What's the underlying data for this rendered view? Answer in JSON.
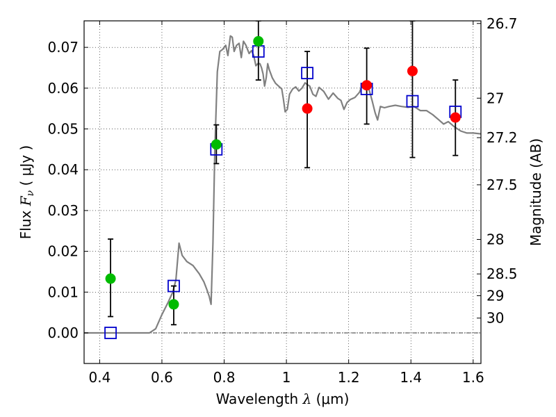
{
  "chart_data": {
    "type": "scatter",
    "xlabel": {
      "prefix": "Wavelength  ",
      "symbol": "λ",
      "unit": " (μm)"
    },
    "ylabel": {
      "prefix": "Flux  ",
      "symbol": "F",
      "subscript": "ν",
      "unit": "  ( μJy )"
    },
    "y2label": "Magnitude (AB)",
    "xlim": [
      0.35,
      1.625
    ],
    "ylim": [
      -0.0075,
      0.0765
    ],
    "xticks": [
      0.4,
      0.6,
      0.8,
      1.0,
      1.2,
      1.4,
      1.6
    ],
    "xtick_labels": [
      "0.4",
      "0.6",
      "0.8",
      "1",
      "1.2",
      "1.4",
      "1.6"
    ],
    "yticks": [
      0.0,
      0.01,
      0.02,
      0.03,
      0.04,
      0.05,
      0.06,
      0.07
    ],
    "ytick_labels": [
      "0.00",
      "0.01",
      "0.02",
      "0.03",
      "0.04",
      "0.05",
      "0.06",
      "0.07"
    ],
    "mag_ticks": [
      26.7,
      27,
      27.2,
      27.5,
      28,
      28.5,
      29,
      30
    ],
    "mag_tick_labels": [
      "26.7",
      "27",
      "27.2",
      "27.5",
      "28",
      "28.5",
      "29",
      "30"
    ],
    "grid": true,
    "legend": "none",
    "series": [
      {
        "kind": "line",
        "color": "#808080",
        "points": [
          [
            0.35,
            0.0
          ],
          [
            0.56,
            0.0
          ],
          [
            0.58,
            0.001
          ],
          [
            0.6,
            0.0045
          ],
          [
            0.62,
            0.0075
          ],
          [
            0.635,
            0.01
          ],
          [
            0.645,
            0.013
          ],
          [
            0.655,
            0.022
          ],
          [
            0.665,
            0.019
          ],
          [
            0.68,
            0.0175
          ],
          [
            0.7,
            0.0165
          ],
          [
            0.72,
            0.0145
          ],
          [
            0.735,
            0.0125
          ],
          [
            0.745,
            0.0105
          ],
          [
            0.752,
            0.009
          ],
          [
            0.758,
            0.007
          ],
          [
            0.764,
            0.022
          ],
          [
            0.77,
            0.045
          ],
          [
            0.778,
            0.064
          ],
          [
            0.786,
            0.069
          ],
          [
            0.795,
            0.0695
          ],
          [
            0.805,
            0.0705
          ],
          [
            0.812,
            0.068
          ],
          [
            0.82,
            0.0728
          ],
          [
            0.826,
            0.0725
          ],
          [
            0.832,
            0.069
          ],
          [
            0.84,
            0.0705
          ],
          [
            0.848,
            0.071
          ],
          [
            0.855,
            0.0675
          ],
          [
            0.862,
            0.0715
          ],
          [
            0.87,
            0.0705
          ],
          [
            0.88,
            0.0685
          ],
          [
            0.888,
            0.0692
          ],
          [
            0.895,
            0.068
          ],
          [
            0.902,
            0.0655
          ],
          [
            0.908,
            0.066
          ],
          [
            0.915,
            0.066
          ],
          [
            0.92,
            0.065
          ],
          [
            0.925,
            0.0635
          ],
          [
            0.93,
            0.0605
          ],
          [
            0.935,
            0.0625
          ],
          [
            0.94,
            0.066
          ],
          [
            0.945,
            0.0645
          ],
          [
            0.955,
            0.0625
          ],
          [
            0.965,
            0.0612
          ],
          [
            0.975,
            0.0605
          ],
          [
            0.985,
            0.0598
          ],
          [
            0.99,
            0.0575
          ],
          [
            0.996,
            0.0542
          ],
          [
            1.003,
            0.0548
          ],
          [
            1.01,
            0.0585
          ],
          [
            1.02,
            0.0598
          ],
          [
            1.03,
            0.0603
          ],
          [
            1.04,
            0.0593
          ],
          [
            1.05,
            0.06
          ],
          [
            1.06,
            0.0613
          ],
          [
            1.068,
            0.0608
          ],
          [
            1.075,
            0.0605
          ],
          [
            1.085,
            0.0585
          ],
          [
            1.095,
            0.058
          ],
          [
            1.105,
            0.0602
          ],
          [
            1.12,
            0.0592
          ],
          [
            1.135,
            0.0573
          ],
          [
            1.15,
            0.0588
          ],
          [
            1.165,
            0.0575
          ],
          [
            1.175,
            0.057
          ],
          [
            1.185,
            0.0548
          ],
          [
            1.195,
            0.0565
          ],
          [
            1.205,
            0.0572
          ],
          [
            1.22,
            0.0577
          ],
          [
            1.235,
            0.059
          ],
          [
            1.245,
            0.061
          ],
          [
            1.255,
            0.0602
          ],
          [
            1.265,
            0.0598
          ],
          [
            1.275,
            0.057
          ],
          [
            1.285,
            0.054
          ],
          [
            1.293,
            0.0522
          ],
          [
            1.302,
            0.0555
          ],
          [
            1.315,
            0.0552
          ],
          [
            1.33,
            0.0555
          ],
          [
            1.35,
            0.0558
          ],
          [
            1.37,
            0.0555
          ],
          [
            1.39,
            0.0553
          ],
          [
            1.41,
            0.0555
          ],
          [
            1.43,
            0.0545
          ],
          [
            1.45,
            0.0545
          ],
          [
            1.47,
            0.0535
          ],
          [
            1.49,
            0.0522
          ],
          [
            1.505,
            0.0512
          ],
          [
            1.52,
            0.0518
          ],
          [
            1.54,
            0.0505
          ],
          [
            1.56,
            0.0495
          ],
          [
            1.58,
            0.049
          ],
          [
            1.6,
            0.049
          ],
          [
            1.625,
            0.0488
          ]
        ]
      },
      {
        "kind": "squares",
        "color": "#0000cc",
        "points": [
          [
            0.435,
            0.0
          ],
          [
            0.638,
            0.0115
          ],
          [
            0.775,
            0.045
          ],
          [
            0.91,
            0.069
          ],
          [
            1.067,
            0.0637
          ],
          [
            1.258,
            0.0598
          ],
          [
            1.405,
            0.0568
          ],
          [
            1.543,
            0.0542
          ]
        ]
      },
      {
        "kind": "circles",
        "color": "#00bb00",
        "points": [
          [
            0.435,
            0.0133
          ],
          [
            0.638,
            0.007
          ],
          [
            0.775,
            0.0462
          ],
          [
            0.91,
            0.0715
          ]
        ]
      },
      {
        "kind": "circles",
        "color": "#ff0000",
        "points": [
          [
            1.067,
            0.055
          ],
          [
            1.258,
            0.0607
          ],
          [
            1.405,
            0.0642
          ],
          [
            1.543,
            0.0528
          ]
        ]
      },
      {
        "kind": "errorbars",
        "color": "#000000",
        "bars": [
          [
            0.435,
            0.004,
            0.023
          ],
          [
            0.638,
            0.002,
            0.0115
          ],
          [
            0.775,
            0.0415,
            0.051
          ],
          [
            0.91,
            0.062,
            0.0765
          ],
          [
            1.067,
            0.0405,
            0.069
          ],
          [
            1.258,
            0.0512,
            0.0698
          ],
          [
            1.405,
            0.043,
            0.0765
          ],
          [
            1.543,
            0.0435,
            0.062
          ]
        ]
      }
    ]
  }
}
